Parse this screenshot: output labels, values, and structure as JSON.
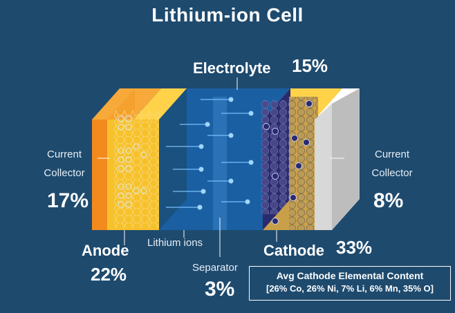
{
  "title": "Lithium-ion Cell",
  "electrolyte": {
    "label": "Electrolyte",
    "percent": "15%"
  },
  "current_collector_left": {
    "line1": "Current",
    "line2": "Collector",
    "percent": "17%"
  },
  "current_collector_right": {
    "line1": "Current",
    "line2": "Collector",
    "percent": "8%"
  },
  "anode": {
    "label": "Anode",
    "percent": "22%"
  },
  "cathode": {
    "label": "Cathode",
    "percent": "33%"
  },
  "separator": {
    "label": "Separator",
    "percent": "3%"
  },
  "lithium_ions": {
    "label": "Lithium ions"
  },
  "cathode_content": {
    "title": "Avg Cathode Elemental Content",
    "body": "[26% Co, 26% Ni, 7% Li, 6% Mn, 35% O]"
  },
  "colors": {
    "background": "#1e4a6e",
    "anode_collector": "#f28a1e",
    "anode": "#f7c12c",
    "electrolyte": "#1b5fa3",
    "cathode": "#2a2a6e",
    "cathode_collector": "#d8d8d8"
  }
}
